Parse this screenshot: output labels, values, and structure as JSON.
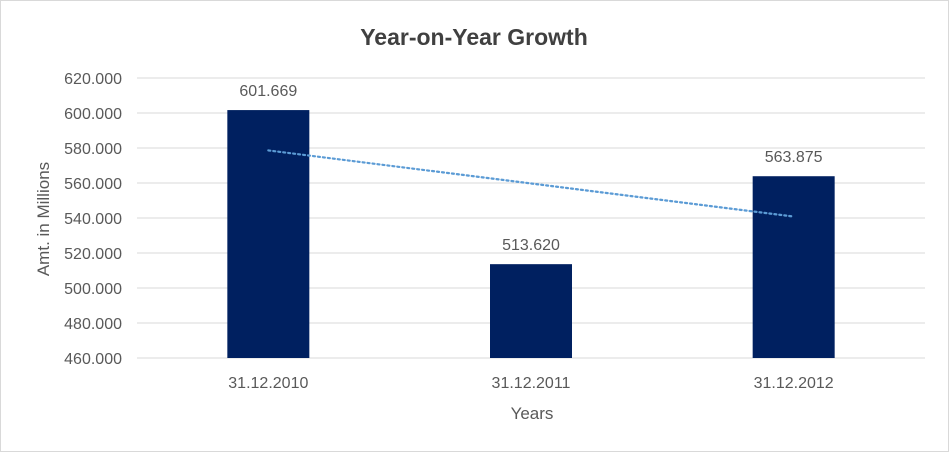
{
  "chart_data": {
    "type": "bar",
    "title": "Year-on-Year Growth",
    "xlabel": "Years",
    "ylabel": "Amt. in Millions",
    "categories": [
      "31.12.2010",
      "31.12.2011",
      "31.12.2012"
    ],
    "values": [
      601.669,
      513.62,
      563.875
    ],
    "data_labels": [
      "601.669",
      "513.620",
      "563.875"
    ],
    "ylim": [
      460,
      620
    ],
    "yticks": [
      460,
      480,
      500,
      520,
      540,
      560,
      580,
      600,
      620
    ],
    "ytick_labels": [
      "460.000",
      "480.000",
      "500.000",
      "520.000",
      "540.000",
      "560.000",
      "580.000",
      "600.000",
      "620.000"
    ],
    "grid": true,
    "legend": "none",
    "trendline": {
      "type": "linear",
      "style": "dotted"
    },
    "colors": {
      "bar": "#002060",
      "trendline": "#5B9BD5",
      "grid": "#d9d9d9",
      "text": "#595959",
      "title": "#404040"
    }
  }
}
